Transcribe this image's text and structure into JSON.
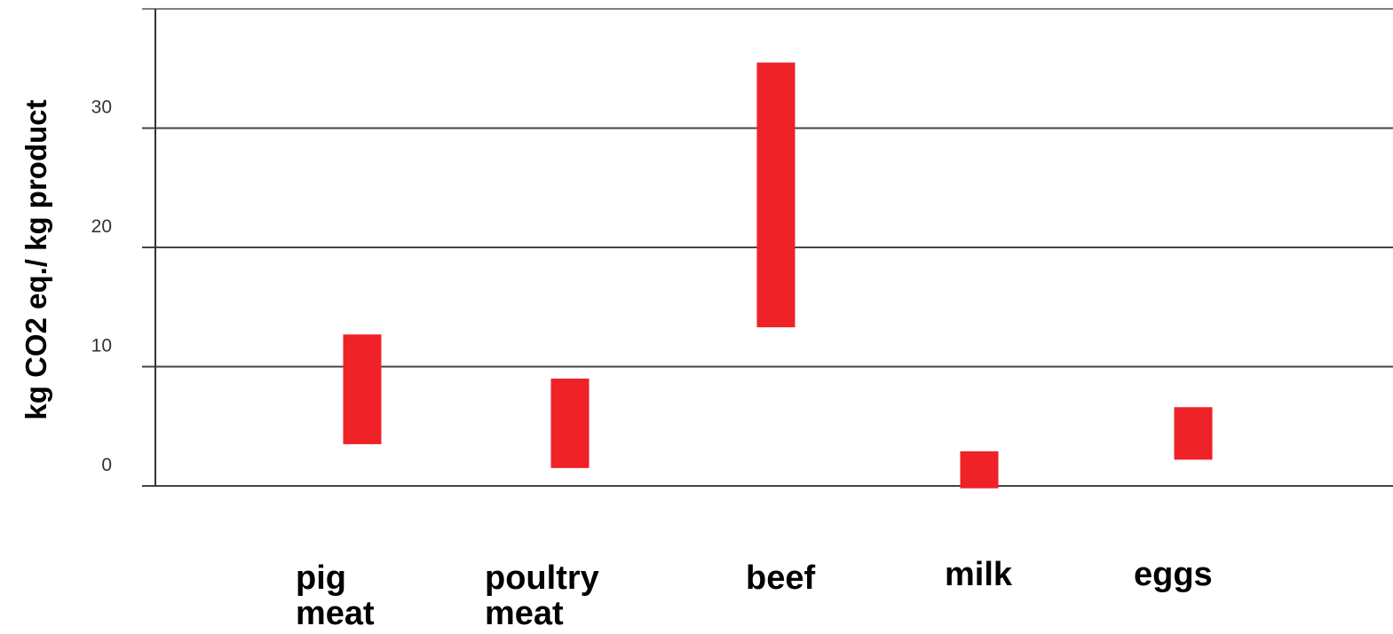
{
  "chart_data": {
    "type": "bar",
    "subtype": "floating-range",
    "ylabel": "kg CO2 eq./ kg product",
    "xlabel": "",
    "title": "",
    "ylim": [
      0,
      40
    ],
    "yticks": [
      0,
      10,
      20,
      30
    ],
    "grid": true,
    "legend": "none",
    "bar_color": "#ee2227",
    "categories": [
      [
        "pig",
        "meat"
      ],
      [
        "poultry",
        "meat"
      ],
      [
        "beef"
      ],
      [
        "milk"
      ],
      [
        "eggs"
      ]
    ],
    "ranges": [
      [
        3.5,
        12.7
      ],
      [
        1.5,
        9.0
      ],
      [
        13.3,
        35.5
      ],
      [
        -0.2,
        2.9
      ],
      [
        2.2,
        6.6
      ]
    ]
  }
}
